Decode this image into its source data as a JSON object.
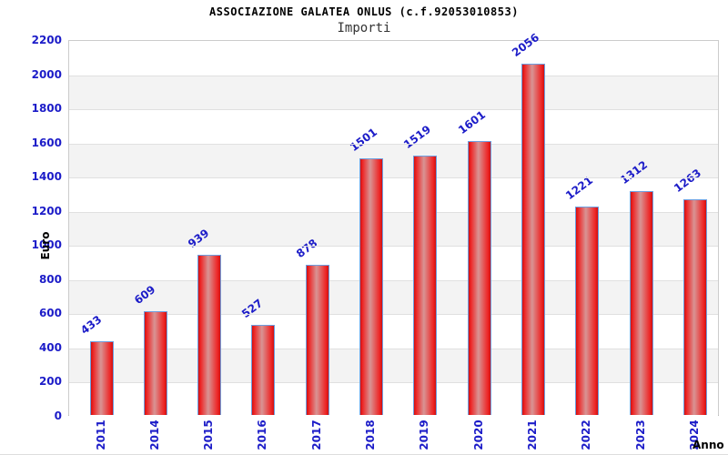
{
  "chart_data": {
    "type": "bar",
    "title": "ASSOCIAZIONE GALATEA ONLUS (c.f.92053010853)",
    "subtitle": "Importi",
    "xlabel": "Anno",
    "ylabel": "Euro",
    "categories": [
      "2011",
      "2014",
      "2015",
      "2016",
      "2017",
      "2018",
      "2019",
      "2020",
      "2021",
      "2022",
      "2023",
      "2024"
    ],
    "values": [
      433,
      609,
      939,
      527,
      878,
      1501,
      1519,
      1601,
      2056,
      1221,
      1312,
      1263
    ],
    "ylim": [
      0,
      2200
    ],
    "ytick_step": 200,
    "ytick_labels": [
      "0",
      "200",
      "400",
      "600",
      "800",
      "1000",
      "1200",
      "1400",
      "1600",
      "1800",
      "2000",
      "2200"
    ],
    "grid": true,
    "legend_position": "none",
    "bar_value_labels_shown": true,
    "colors": {
      "axis_text": "#1c1cc8",
      "value_label_text": "#1c1cc8",
      "bar_fill_edge": "#cf1111",
      "bar_fill_bright": "#ee2525",
      "bar_fill_center": "#d89494",
      "bar_border": "#6d9fe0",
      "band": "#f3f3f3",
      "gridline": "#e0e0e0",
      "plot_border": "#cccccc",
      "title_text": "#000000",
      "subtitle_text": "#333333"
    }
  }
}
